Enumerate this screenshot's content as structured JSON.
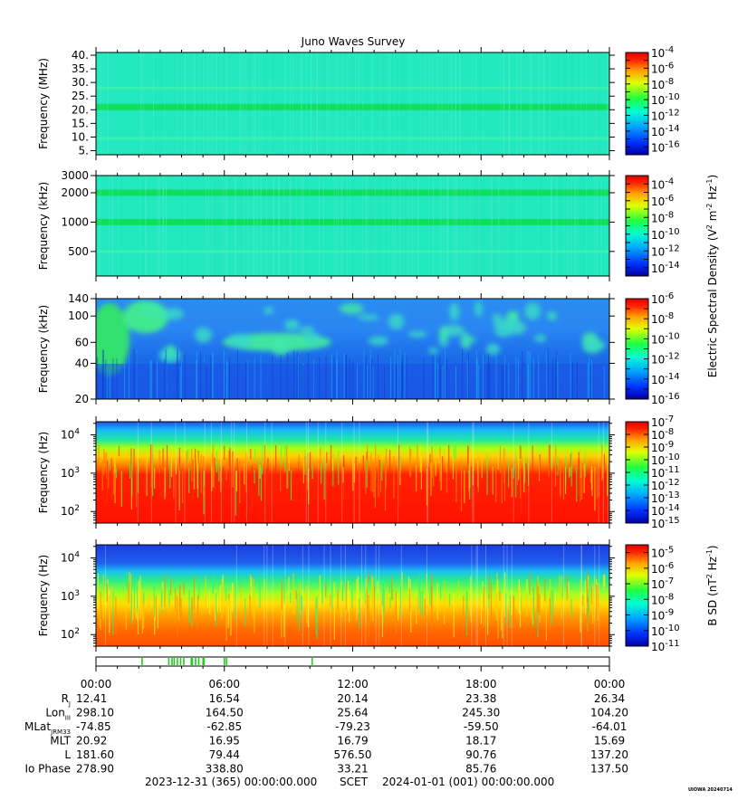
{
  "title": "Juno Waves Survey",
  "footer": {
    "start": "2023-12-31 (365) 00:00:00.000",
    "scet": "SCET",
    "end": "2024-01-01 (001) 00:00:00.000",
    "tag": "UIOWA 20240714"
  },
  "colors": {
    "background": "#22e8c0",
    "band": "#10dd55",
    "low_blue": "#1e64f0",
    "deep_blue": "#0000cc",
    "red": "#ff1100",
    "event_marker": "#22cc22"
  },
  "chart_data": [
    {
      "type": "heatmap",
      "ylabel": "Frequency (MHz)",
      "ytick_labels": [
        "5.",
        "10.",
        "15.",
        "20.",
        "25.",
        "30.",
        "35.",
        "40."
      ],
      "ylim": [
        3.5,
        41
      ],
      "yscale": "linear",
      "bands": [
        {
          "freq": 21,
          "color": "band"
        },
        {
          "freq": 9.5,
          "color": "faint"
        },
        {
          "freq": 28,
          "color": "faint"
        }
      ],
      "colorbar": {
        "min_exp": -17,
        "max_exp": -4,
        "labels": [
          "-4",
          "-6",
          "-8",
          "-10",
          "-12",
          "-14",
          "-16"
        ]
      }
    },
    {
      "type": "heatmap",
      "ylabel": "Frequency (kHz)",
      "ytick_labels": [
        "500",
        "1000",
        "2000",
        "3000"
      ],
      "ylim": [
        280,
        3000
      ],
      "yscale": "log",
      "bands": [
        {
          "freq": 2000,
          "color": "band"
        },
        {
          "freq": 1000,
          "color": "band"
        },
        {
          "freq": 500,
          "color": "faint"
        }
      ],
      "colorbar": {
        "min_exp": -15,
        "max_exp": -3,
        "labels": [
          "-4",
          "-6",
          "-8",
          "-10",
          "-12",
          "-14"
        ]
      }
    },
    {
      "type": "heatmap",
      "ylabel": "Frequency (kHz)",
      "ytick_labels": [
        "20",
        "40",
        "60",
        "100",
        "140"
      ],
      "ylim": [
        20,
        140
      ],
      "yscale": "log",
      "colorbar": {
        "min_exp": -16,
        "max_exp": -6,
        "labels": [
          "-6",
          "-8",
          "-10",
          "-12",
          "-14",
          "-16"
        ]
      }
    },
    {
      "type": "heatmap",
      "ylabel": "Frequency (Hz)",
      "ytick_labels": [
        "2",
        "3",
        "4"
      ],
      "ylim": [
        50,
        22000
      ],
      "yscale": "log",
      "colorbar": {
        "min_exp": -15,
        "max_exp": -7,
        "labels": [
          "-7",
          "-8",
          "-9",
          "-10",
          "-11",
          "-12",
          "-13",
          "-14",
          "-15"
        ]
      }
    },
    {
      "type": "heatmap",
      "ylabel": "Frequency (Hz)",
      "ytick_labels": [
        "2",
        "3",
        "4"
      ],
      "ylim": [
        50,
        22000
      ],
      "yscale": "log",
      "colorbar": {
        "min_exp": -11,
        "max_exp": -4.5,
        "labels": [
          "-5",
          "-6",
          "-7",
          "-8",
          "-9",
          "-10",
          "-11"
        ]
      }
    }
  ],
  "colorbar_titles": {
    "electric": "Electric Spectral Density (V",
    "magnetic": "B SD (nT"
  },
  "event_strip": {
    "markers_hours": [
      2.15,
      3.4,
      3.55,
      3.65,
      3.8,
      3.95,
      4.1,
      4.45,
      4.5,
      4.65,
      4.8,
      5.0,
      5.05,
      6.0,
      6.1,
      10.1
    ]
  },
  "time_axis": {
    "labels": [
      "00:00",
      "06:00",
      "12:00",
      "18:00",
      "00:00"
    ],
    "rows": [
      {
        "label": "R",
        "sub": "J",
        "values": [
          "12.41",
          "16.54",
          "20.14",
          "23.38",
          "26.34"
        ]
      },
      {
        "label": "Lon",
        "sub": "III",
        "values": [
          "298.10",
          "164.50",
          "25.64",
          "245.30",
          "104.20"
        ]
      },
      {
        "label": "MLat",
        "sub": "JRM33",
        "values": [
          "-74.85",
          "-62.85",
          "-79.23",
          "-59.50",
          "-64.01"
        ]
      },
      {
        "label": "MLT",
        "sub": "",
        "values": [
          "20.92",
          "16.95",
          "16.79",
          "18.17",
          "15.69"
        ]
      },
      {
        "label": "L",
        "sub": "",
        "values": [
          "181.60",
          "79.44",
          "576.50",
          "90.76",
          "137.20"
        ]
      },
      {
        "label": "Io Phase",
        "sub": "",
        "values": [
          "278.90",
          "338.80",
          "33.21",
          "85.76",
          "137.50"
        ]
      }
    ]
  }
}
